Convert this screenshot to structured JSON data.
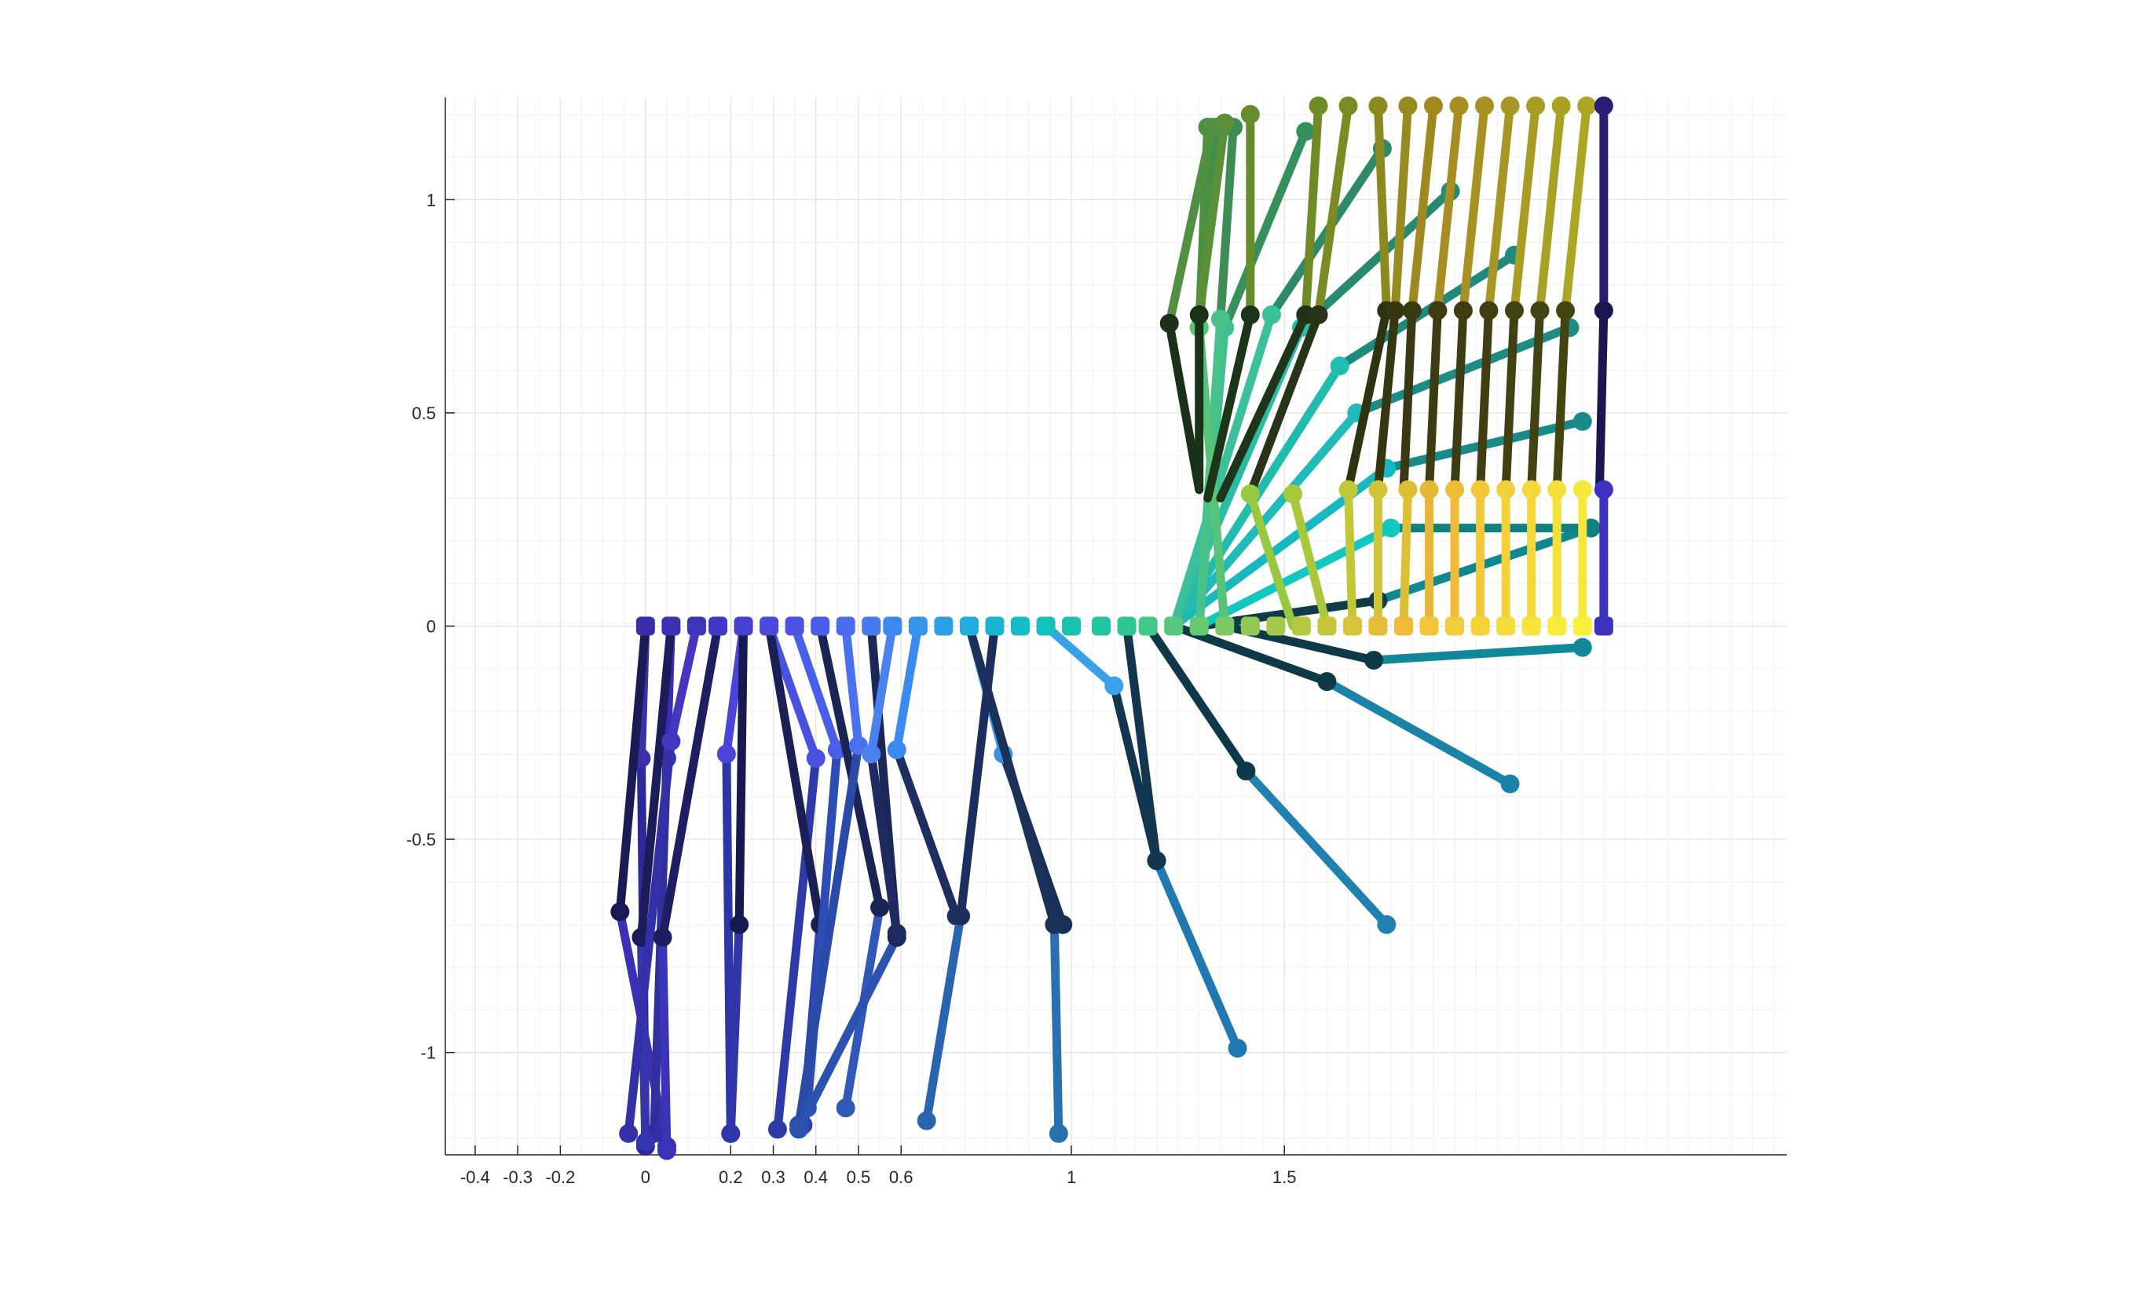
{
  "chart_data": {
    "type": "line",
    "title": "",
    "xlabel": "",
    "ylabel": "",
    "xlim": [
      -0.47,
      2.68
    ],
    "ylim": [
      -1.24,
      1.24
    ],
    "grid": "on (major and minor)",
    "legend": "none",
    "x_ticks": [
      -0.4,
      -0.3,
      -0.2,
      0,
      0.2,
      0.3,
      0.4,
      0.5,
      0.6,
      1,
      1.5
    ],
    "x_tick_labels": [
      "-0.4",
      "-0.3",
      "-0.2",
      "0",
      "0.2",
      "0.3",
      "0.4",
      "0.5",
      "0.6",
      "1",
      "1.5"
    ],
    "y_ticks": [
      1,
      0.5,
      0,
      -0.5,
      -1
    ],
    "y_tick_labels": [
      "1",
      "0.5",
      "0",
      "-0.5",
      "-1"
    ],
    "description_of_series": "Stick-figure leg poses: each pose is a hip point on the y=0 line, a knee point and a foot point, drawn as two thick segments with dot markers.",
    "series": [
      {
        "hip": [
          0.0,
          0.0
        ],
        "knee": [
          -0.01,
          -0.31
        ],
        "foot": [
          0.0,
          -1.22
        ],
        "upper_color": "#3c2fa8",
        "lower_color": "#2d2996"
      },
      {
        "hip": [
          0.0,
          0.0
        ],
        "knee": [
          -0.06,
          -0.67
        ],
        "foot": [
          0.05,
          -1.22
        ],
        "upper_color": "#1a1a55",
        "lower_color": "#3a30b5"
      },
      {
        "hip": [
          0.06,
          0.0
        ],
        "knee": [
          0.05,
          -0.31
        ],
        "foot": [
          0.02,
          -1.19
        ],
        "upper_color": "#3a2fb0",
        "lower_color": "#2f2fa0"
      },
      {
        "hip": [
          0.06,
          0.0
        ],
        "knee": [
          -0.01,
          -0.73
        ],
        "foot": [
          0.0,
          -1.21
        ],
        "upper_color": "#1c1c5a",
        "lower_color": "#3535ad"
      },
      {
        "hip": [
          0.12,
          0.0
        ],
        "knee": [
          0.06,
          -0.27
        ],
        "foot": [
          -0.04,
          -1.19
        ],
        "upper_color": "#4535c0",
        "lower_color": "#3330a8"
      },
      {
        "hip": [
          0.17,
          0.0
        ],
        "knee": [
          0.04,
          -0.73
        ],
        "foot": [
          0.05,
          -1.23
        ],
        "upper_color": "#1e1e60",
        "lower_color": "#3a34b8"
      },
      {
        "hip": [
          0.23,
          0.0
        ],
        "knee": [
          0.19,
          -0.3
        ],
        "foot": [
          0.2,
          -1.19
        ],
        "upper_color": "#4a45d8",
        "lower_color": "#2f35a8"
      },
      {
        "hip": [
          0.23,
          0.0
        ],
        "knee": [
          0.22,
          -0.7
        ],
        "foot": [
          0.2,
          -1.19
        ],
        "upper_color": "#171a50",
        "lower_color": "#3035a8"
      },
      {
        "hip": [
          0.29,
          0.0
        ],
        "knee": [
          0.4,
          -0.31
        ],
        "foot": [
          0.31,
          -1.18
        ],
        "upper_color": "#4a50e0",
        "lower_color": "#2e3aa8"
      },
      {
        "hip": [
          0.29,
          0.0
        ],
        "knee": [
          0.41,
          -0.7
        ],
        "foot": [
          0.37,
          -1.17
        ],
        "upper_color": "#1a1f55",
        "lower_color": "#2e42b0"
      },
      {
        "hip": [
          0.35,
          0.0
        ],
        "knee": [
          0.45,
          -0.29
        ],
        "foot": [
          0.38,
          -1.13
        ],
        "upper_color": "#4860e8",
        "lower_color": "#2e4cb5"
      },
      {
        "hip": [
          0.41,
          0.0
        ],
        "knee": [
          0.55,
          -0.66
        ],
        "foot": [
          0.47,
          -1.13
        ],
        "upper_color": "#1a2555",
        "lower_color": "#3058b8"
      },
      {
        "hip": [
          0.47,
          0.0
        ],
        "knee": [
          0.5,
          -0.28
        ],
        "foot": [
          0.36,
          -1.17
        ],
        "upper_color": "#4a70ee",
        "lower_color": "#2a4aa8"
      },
      {
        "hip": [
          0.53,
          0.0
        ],
        "knee": [
          0.59,
          -0.73
        ],
        "foot": [
          0.36,
          -1.18
        ],
        "upper_color": "#1a2858",
        "lower_color": "#2c52b0"
      },
      {
        "hip": [
          0.58,
          0.0
        ],
        "knee": [
          0.53,
          -0.3
        ],
        "foot": [
          0.59,
          -0.72
        ],
        "upper_color": "#4a80f0",
        "lower_color": "#1e2a60"
      },
      {
        "hip": [
          0.64,
          0.0
        ],
        "knee": [
          0.59,
          -0.29
        ],
        "foot": [
          0.73,
          -0.68
        ],
        "upper_color": "#3a8af0",
        "lower_color": "#1e2e60"
      },
      {
        "hip": [
          0.76,
          0.0
        ],
        "knee": [
          0.84,
          -0.3
        ],
        "foot": [
          0.98,
          -0.7
        ],
        "upper_color": "#3892e8",
        "lower_color": "#183058"
      },
      {
        "hip": [
          0.76,
          0.0
        ],
        "knee": [
          0.96,
          -0.7
        ],
        "foot": [
          0.97,
          -1.19
        ],
        "upper_color": "#1b3258",
        "lower_color": "#2870b0"
      },
      {
        "hip": [
          0.82,
          0.0
        ],
        "knee": [
          0.74,
          -0.68
        ],
        "foot": [
          0.66,
          -1.16
        ],
        "upper_color": "#1c2e5e",
        "lower_color": "#2a64b0"
      },
      {
        "hip": [
          0.94,
          0.0
        ],
        "knee": [
          1.1,
          -0.14
        ],
        "foot": [
          1.2,
          -0.55
        ],
        "upper_color": "#3aa0e8",
        "lower_color": "#123550"
      },
      {
        "hip": [
          1.13,
          0.0
        ],
        "knee": [
          1.2,
          -0.55
        ],
        "foot": [
          1.39,
          -0.99
        ],
        "upper_color": "#123550",
        "lower_color": "#2078b0"
      },
      {
        "hip": [
          1.18,
          0.0
        ],
        "knee": [
          1.41,
          -0.34
        ],
        "foot": [
          1.74,
          -0.7
        ],
        "upper_color": "#0e3848",
        "lower_color": "#2080b0"
      },
      {
        "hip": [
          1.24,
          0.0
        ],
        "knee": [
          1.6,
          -0.13
        ],
        "foot": [
          2.03,
          -0.37
        ],
        "upper_color": "#0e3a48",
        "lower_color": "#1a84a8"
      },
      {
        "hip": [
          1.36,
          0.0
        ],
        "knee": [
          1.71,
          -0.08
        ],
        "foot": [
          2.2,
          -0.05
        ],
        "upper_color": "#0e3a48",
        "lower_color": "#10889a"
      },
      {
        "hip": [
          1.3,
          0.0
        ],
        "knee": [
          1.72,
          0.06
        ],
        "foot": [
          2.22,
          0.23
        ],
        "upper_color": "#0f3c48",
        "lower_color": "#108890"
      },
      {
        "hip": [
          1.3,
          0.0
        ],
        "knee": [
          1.75,
          0.23
        ],
        "foot": [
          2.22,
          0.23
        ],
        "upper_color": "#10c8c0",
        "lower_color": "#108080"
      },
      {
        "hip": [
          1.24,
          0.0
        ],
        "knee": [
          1.74,
          0.37
        ],
        "foot": [
          2.2,
          0.48
        ],
        "upper_color": "#18b8c0",
        "lower_color": "#188a88"
      },
      {
        "hip": [
          1.24,
          0.0
        ],
        "knee": [
          1.67,
          0.5
        ],
        "foot": [
          2.17,
          0.7
        ],
        "upper_color": "#20bab8",
        "lower_color": "#1e8c84"
      },
      {
        "hip": [
          1.24,
          0.0
        ],
        "knee": [
          1.63,
          0.61
        ],
        "foot": [
          2.04,
          0.87
        ],
        "upper_color": "#22bcae",
        "lower_color": "#1f8a7c"
      },
      {
        "hip": [
          1.24,
          0.0
        ],
        "knee": [
          1.54,
          0.7
        ],
        "foot": [
          1.89,
          1.02
        ],
        "upper_color": "#2abca4",
        "lower_color": "#278a70"
      },
      {
        "hip": [
          1.24,
          0.0
        ],
        "knee": [
          1.47,
          0.73
        ],
        "foot": [
          1.73,
          1.12
        ],
        "upper_color": "#3ac09a",
        "lower_color": "#2e8a66"
      },
      {
        "hip": [
          1.3,
          0.0
        ],
        "knee": [
          1.36,
          0.7
        ],
        "foot": [
          1.55,
          1.16
        ],
        "upper_color": "#40c090",
        "lower_color": "#36905c"
      },
      {
        "hip": [
          1.3,
          0.0
        ],
        "knee": [
          1.35,
          0.72
        ],
        "foot": [
          1.38,
          1.17
        ],
        "upper_color": "#48c288",
        "lower_color": "#3c8c54"
      },
      {
        "hip": [
          1.36,
          0.0
        ],
        "knee": [
          1.3,
          0.7
        ],
        "foot": [
          1.34,
          1.17
        ],
        "upper_color": "#50c480",
        "lower_color": "#40904c"
      },
      {
        "hip": [
          1.36,
          0.0
        ],
        "knee": [
          1.3,
          0.7
        ],
        "foot": [
          1.32,
          1.17
        ],
        "upper_color": "#58c478",
        "lower_color": "#4a9040"
      },
      {
        "hip": [
          1.3,
          0.32
        ],
        "knee": [
          1.23,
          0.71
        ],
        "foot": [
          1.33,
          1.17
        ],
        "upper_color": "#1a3018",
        "lower_color": "#509040"
      },
      {
        "hip": [
          1.3,
          0.32
        ],
        "knee": [
          1.3,
          0.73
        ],
        "foot": [
          1.36,
          1.18
        ],
        "upper_color": "#1a3218",
        "lower_color": "#5a9038"
      },
      {
        "hip": [
          1.32,
          0.3
        ],
        "knee": [
          1.42,
          0.73
        ],
        "foot": [
          1.42,
          1.2
        ],
        "upper_color": "#1c3418",
        "lower_color": "#668c2c"
      },
      {
        "hip": [
          1.35,
          0.3
        ],
        "knee": [
          1.55,
          0.73
        ],
        "foot": [
          1.58,
          1.22
        ],
        "upper_color": "#203418",
        "lower_color": "#708a26"
      },
      {
        "hip": [
          1.42,
          0.31
        ],
        "knee": [
          1.58,
          0.73
        ],
        "foot": [
          1.65,
          1.22
        ],
        "upper_color": "#283418",
        "lower_color": "#7c8a24"
      },
      {
        "hip": [
          1.65,
          0.32
        ],
        "knee": [
          1.74,
          0.74
        ],
        "foot": [
          1.72,
          1.22
        ],
        "upper_color": "#2e3412",
        "lower_color": "#8a8a20"
      },
      {
        "hip": [
          1.72,
          0.32
        ],
        "knee": [
          1.76,
          0.74
        ],
        "foot": [
          1.79,
          1.22
        ],
        "upper_color": "#363612",
        "lower_color": "#968a20"
      },
      {
        "hip": [
          1.78,
          0.32
        ],
        "knee": [
          1.8,
          0.74
        ],
        "foot": [
          1.85,
          1.22
        ],
        "upper_color": "#3a3812",
        "lower_color": "#a08820"
      },
      {
        "hip": [
          1.84,
          0.32
        ],
        "knee": [
          1.86,
          0.74
        ],
        "foot": [
          1.91,
          1.22
        ],
        "upper_color": "#3e3a12",
        "lower_color": "#a88e22"
      },
      {
        "hip": [
          1.9,
          0.32
        ],
        "knee": [
          1.92,
          0.74
        ],
        "foot": [
          1.97,
          1.22
        ],
        "upper_color": "#3e3c12",
        "lower_color": "#a89022"
      },
      {
        "hip": [
          1.96,
          0.32
        ],
        "knee": [
          1.98,
          0.74
        ],
        "foot": [
          2.03,
          1.22
        ],
        "upper_color": "#403e12",
        "lower_color": "#a89624"
      },
      {
        "hip": [
          2.02,
          0.32
        ],
        "knee": [
          2.04,
          0.74
        ],
        "foot": [
          2.09,
          1.22
        ],
        "upper_color": "#404012",
        "lower_color": "#a89c24"
      },
      {
        "hip": [
          2.08,
          0.32
        ],
        "knee": [
          2.1,
          0.74
        ],
        "foot": [
          2.15,
          1.22
        ],
        "upper_color": "#424212",
        "lower_color": "#a8a224"
      },
      {
        "hip": [
          2.14,
          0.32
        ],
        "knee": [
          2.16,
          0.74
        ],
        "foot": [
          2.21,
          1.22
        ],
        "upper_color": "#444412",
        "lower_color": "#aca624"
      },
      {
        "hip": [
          2.24,
          0.32
        ],
        "knee": [
          2.25,
          0.74
        ],
        "foot": [
          2.25,
          1.22
        ],
        "upper_color": "#1a1650",
        "lower_color": "#2a1e70"
      },
      {
        "hip": [
          1.52,
          0.0
        ],
        "knee": [
          1.42,
          0.31
        ],
        "foot": null,
        "upper_color": "#98c840",
        "lower_color": null
      },
      {
        "hip": [
          1.6,
          0.0
        ],
        "knee": [
          1.52,
          0.31
        ],
        "foot": null,
        "upper_color": "#a8c83c",
        "lower_color": null
      },
      {
        "hip": [
          1.66,
          0.0
        ],
        "knee": [
          1.65,
          0.32
        ],
        "foot": null,
        "upper_color": "#c0c838",
        "lower_color": null
      },
      {
        "hip": [
          1.72,
          0.0
        ],
        "knee": [
          1.72,
          0.32
        ],
        "foot": null,
        "upper_color": "#d0c438",
        "lower_color": null
      },
      {
        "hip": [
          1.78,
          0.0
        ],
        "knee": [
          1.79,
          0.32
        ],
        "foot": null,
        "upper_color": "#dcc034",
        "lower_color": null
      },
      {
        "hip": [
          1.84,
          0.0
        ],
        "knee": [
          1.84,
          0.32
        ],
        "foot": null,
        "upper_color": "#e6b838",
        "lower_color": null
      },
      {
        "hip": [
          1.9,
          0.0
        ],
        "knee": [
          1.9,
          0.32
        ],
        "foot": null,
        "upper_color": "#f0bc38",
        "lower_color": null
      },
      {
        "hip": [
          1.96,
          0.0
        ],
        "knee": [
          1.96,
          0.32
        ],
        "foot": null,
        "upper_color": "#f2c83a",
        "lower_color": null
      },
      {
        "hip": [
          2.02,
          0.0
        ],
        "knee": [
          2.02,
          0.32
        ],
        "foot": null,
        "upper_color": "#f2d03a",
        "lower_color": null
      },
      {
        "hip": [
          2.08,
          0.0
        ],
        "knee": [
          2.08,
          0.32
        ],
        "foot": null,
        "upper_color": "#f4d83a",
        "lower_color": null
      },
      {
        "hip": [
          2.14,
          0.0
        ],
        "knee": [
          2.14,
          0.32
        ],
        "foot": null,
        "upper_color": "#f4e03a",
        "lower_color": null
      },
      {
        "hip": [
          2.2,
          0.0
        ],
        "knee": [
          2.2,
          0.32
        ],
        "foot": null,
        "upper_color": "#f6e83a",
        "lower_color": null
      },
      {
        "hip": [
          2.25,
          0.0
        ],
        "knee": [
          2.25,
          0.32
        ],
        "foot": null,
        "upper_color": "#3c32c0",
        "lower_color": null
      }
    ],
    "hip_markers": {
      "x": [
        0.0,
        0.06,
        0.12,
        0.17,
        0.23,
        0.29,
        0.35,
        0.41,
        0.47,
        0.53,
        0.58,
        0.64,
        0.7,
        0.76,
        0.82,
        0.88,
        0.94,
        1.0,
        1.07,
        1.13,
        1.18,
        1.24,
        1.3,
        1.36,
        1.42,
        1.48,
        1.54,
        1.6,
        1.66,
        1.72,
        1.78,
        1.84,
        1.9,
        1.96,
        2.02,
        2.08,
        2.14,
        2.2,
        2.25
      ],
      "y": 0,
      "colors": [
        "#3a2fa8",
        "#3a33b0",
        "#3d36bb",
        "#4038c4",
        "#4540d2",
        "#4a48dc",
        "#4c52e4",
        "#4c5ee8",
        "#4a6cee",
        "#447af0",
        "#3d88f0",
        "#3494ea",
        "#2ca0e4",
        "#22acdc",
        "#1ab4d2",
        "#14bcc8",
        "#12c0bc",
        "#18c2ae",
        "#22c4a0",
        "#30c694",
        "#42c888",
        "#56c87c",
        "#68c870",
        "#7cc862",
        "#90c856",
        "#a4c84a",
        "#b6c842",
        "#c8c63c",
        "#d8c23a",
        "#e4bc38",
        "#eeba38",
        "#f2c43a",
        "#f2cc3a",
        "#f4d43a",
        "#f4dc3a",
        "#f6e43a",
        "#f6ec3a",
        "#f6f03a",
        "#3c32c0"
      ]
    }
  }
}
